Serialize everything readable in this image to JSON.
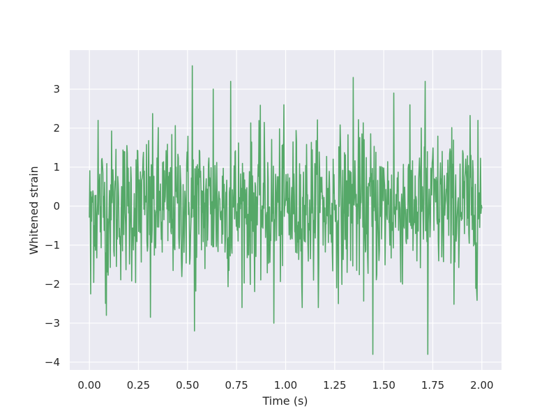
{
  "chart_data": {
    "type": "line",
    "title": "",
    "xlabel": "Time (s)",
    "ylabel": "Whitened strain",
    "xlim": [
      -0.1,
      2.1
    ],
    "ylim": [
      -4.2,
      4.0
    ],
    "xticks": [
      {
        "value": 0.0,
        "label": "0.00"
      },
      {
        "value": 0.25,
        "label": "0.25"
      },
      {
        "value": 0.5,
        "label": "0.50"
      },
      {
        "value": 0.75,
        "label": "0.75"
      },
      {
        "value": 1.0,
        "label": "1.00"
      },
      {
        "value": 1.25,
        "label": "1.25"
      },
      {
        "value": 1.5,
        "label": "1.50"
      },
      {
        "value": 1.75,
        "label": "1.75"
      },
      {
        "value": 2.0,
        "label": "2.00"
      }
    ],
    "yticks": [
      {
        "value": 3,
        "label": "3"
      },
      {
        "value": 2,
        "label": "2"
      },
      {
        "value": 1,
        "label": "1"
      },
      {
        "value": 0,
        "label": "0"
      },
      {
        "value": -1,
        "label": "−1"
      },
      {
        "value": -2,
        "label": "−2"
      },
      {
        "value": -3,
        "label": "−3"
      },
      {
        "value": -4,
        "label": "−4"
      }
    ],
    "grid": true,
    "legend": "none",
    "series": [
      {
        "color": "#55a868",
        "x_start": 0.0,
        "x_end": 2.0,
        "extremes": [
          {
            "x": 0.007,
            "y": -2.25
          },
          {
            "x": 0.045,
            "y": 2.2
          },
          {
            "x": 0.087,
            "y": -2.8
          },
          {
            "x": 0.31,
            "y": -2.85
          },
          {
            "x": 0.525,
            "y": 3.6
          },
          {
            "x": 0.535,
            "y": -3.2
          },
          {
            "x": 0.63,
            "y": 3.0
          },
          {
            "x": 0.72,
            "y": 3.2
          },
          {
            "x": 0.94,
            "y": -3.0
          },
          {
            "x": 1.345,
            "y": 3.3
          },
          {
            "x": 1.445,
            "y": -3.8
          },
          {
            "x": 1.55,
            "y": 2.9
          },
          {
            "x": 1.71,
            "y": 3.2
          },
          {
            "x": 1.725,
            "y": -3.8
          },
          {
            "x": 1.98,
            "y": 2.2
          }
        ]
      }
    ]
  }
}
